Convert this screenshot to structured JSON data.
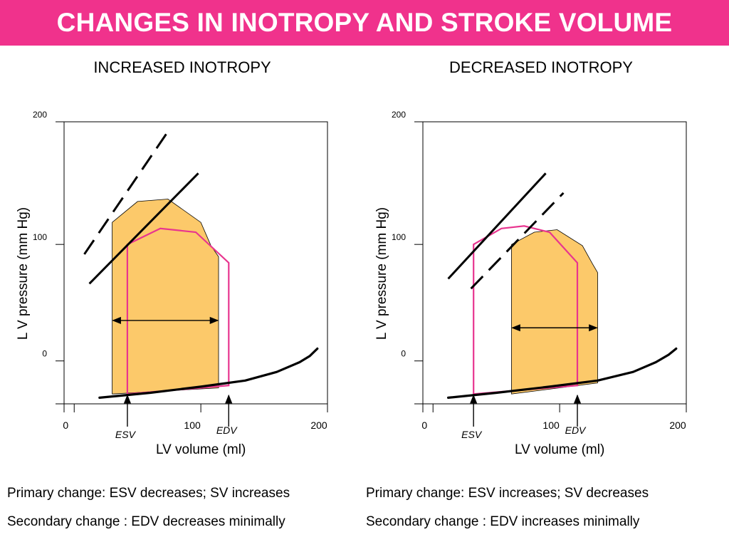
{
  "title": "CHANGES IN INOTROPY AND STROKE VOLUME",
  "colors": {
    "title_bar": "#f0328c",
    "loop_fill": "#fcc96a",
    "loop_outline": "#e8358f",
    "lines": "#000000"
  },
  "chart_data": [
    {
      "type": "diagram",
      "title": "INCREASED INOTROPY",
      "xlabel": "LV volume (ml)",
      "ylabel": "L V  pressure (mm Hg)",
      "x_ticks": [
        "0",
        "100",
        "200"
      ],
      "y_ticks": [
        "200",
        "100",
        "0"
      ],
      "xlim": [
        -8,
        200
      ],
      "ylim": [
        -30,
        200
      ],
      "markers": [
        {
          "label": "ESV",
          "x": 42
        },
        {
          "label": "EDV",
          "x": 122
        }
      ],
      "edpvr": [
        [
          20,
          -25
        ],
        [
          60,
          -21
        ],
        [
          100,
          -16
        ],
        [
          135,
          -11
        ],
        [
          160,
          -4
        ],
        [
          178,
          4
        ],
        [
          186,
          9
        ],
        [
          192,
          15
        ]
      ],
      "espvr_dashed": [
        [
          8,
          92
        ],
        [
          74,
          192
        ]
      ],
      "espvr_solid": [
        [
          12,
          68
        ],
        [
          98,
          158
        ]
      ],
      "filled_loop": [
        [
          30,
          -22
        ],
        [
          30,
          118
        ],
        [
          50,
          135
        ],
        [
          74,
          137
        ],
        [
          100,
          118
        ],
        [
          108,
          99
        ],
        [
          114,
          90
        ],
        [
          114,
          -17
        ]
      ],
      "outlined_loop": [
        [
          42,
          -22
        ],
        [
          42,
          100
        ],
        [
          68,
          113
        ],
        [
          96,
          110
        ],
        [
          122,
          85
        ],
        [
          122,
          -15
        ]
      ],
      "sv_arrow": {
        "from": 30,
        "to": 114,
        "y": 38
      },
      "captions": [
        "Primary change: ESV decreases; SV increases",
        "Secondary change : EDV decreases minimally"
      ]
    },
    {
      "type": "diagram",
      "title": "DECREASED INOTROPY",
      "xlabel": "LV volume (ml)",
      "ylabel": "L V  pressure (mm Hg)",
      "x_ticks": [
        "0",
        "100",
        "200"
      ],
      "y_ticks": [
        "200",
        "100",
        "0"
      ],
      "xlim": [
        -8,
        200
      ],
      "ylim": [
        -30,
        200
      ],
      "markers": [
        {
          "label": "ESV",
          "x": 32
        },
        {
          "label": "EDV",
          "x": 114
        }
      ],
      "edpvr": [
        [
          12,
          -25
        ],
        [
          50,
          -21
        ],
        [
          92,
          -16
        ],
        [
          130,
          -11
        ],
        [
          158,
          -4
        ],
        [
          176,
          4
        ],
        [
          186,
          10
        ],
        [
          192,
          15
        ]
      ],
      "espvr_dashed": [
        [
          30,
          64
        ],
        [
          103,
          142
        ]
      ],
      "espvr_solid": [
        [
          12,
          72
        ],
        [
          89,
          158
        ]
      ],
      "filled_loop": [
        [
          62,
          -22
        ],
        [
          62,
          100
        ],
        [
          80,
          110
        ],
        [
          98,
          112
        ],
        [
          118,
          99
        ],
        [
          126,
          84
        ],
        [
          130,
          77
        ],
        [
          130,
          -13
        ]
      ],
      "outlined_loop": [
        [
          32,
          -22
        ],
        [
          32,
          100
        ],
        [
          54,
          113
        ],
        [
          72,
          115
        ],
        [
          92,
          110
        ],
        [
          114,
          85
        ],
        [
          114,
          -15
        ]
      ],
      "sv_arrow": {
        "from": 62,
        "to": 130,
        "y": 32
      },
      "captions": [
        "Primary change: ESV increases; SV decreases",
        "Secondary change : EDV increases minimally"
      ]
    }
  ]
}
